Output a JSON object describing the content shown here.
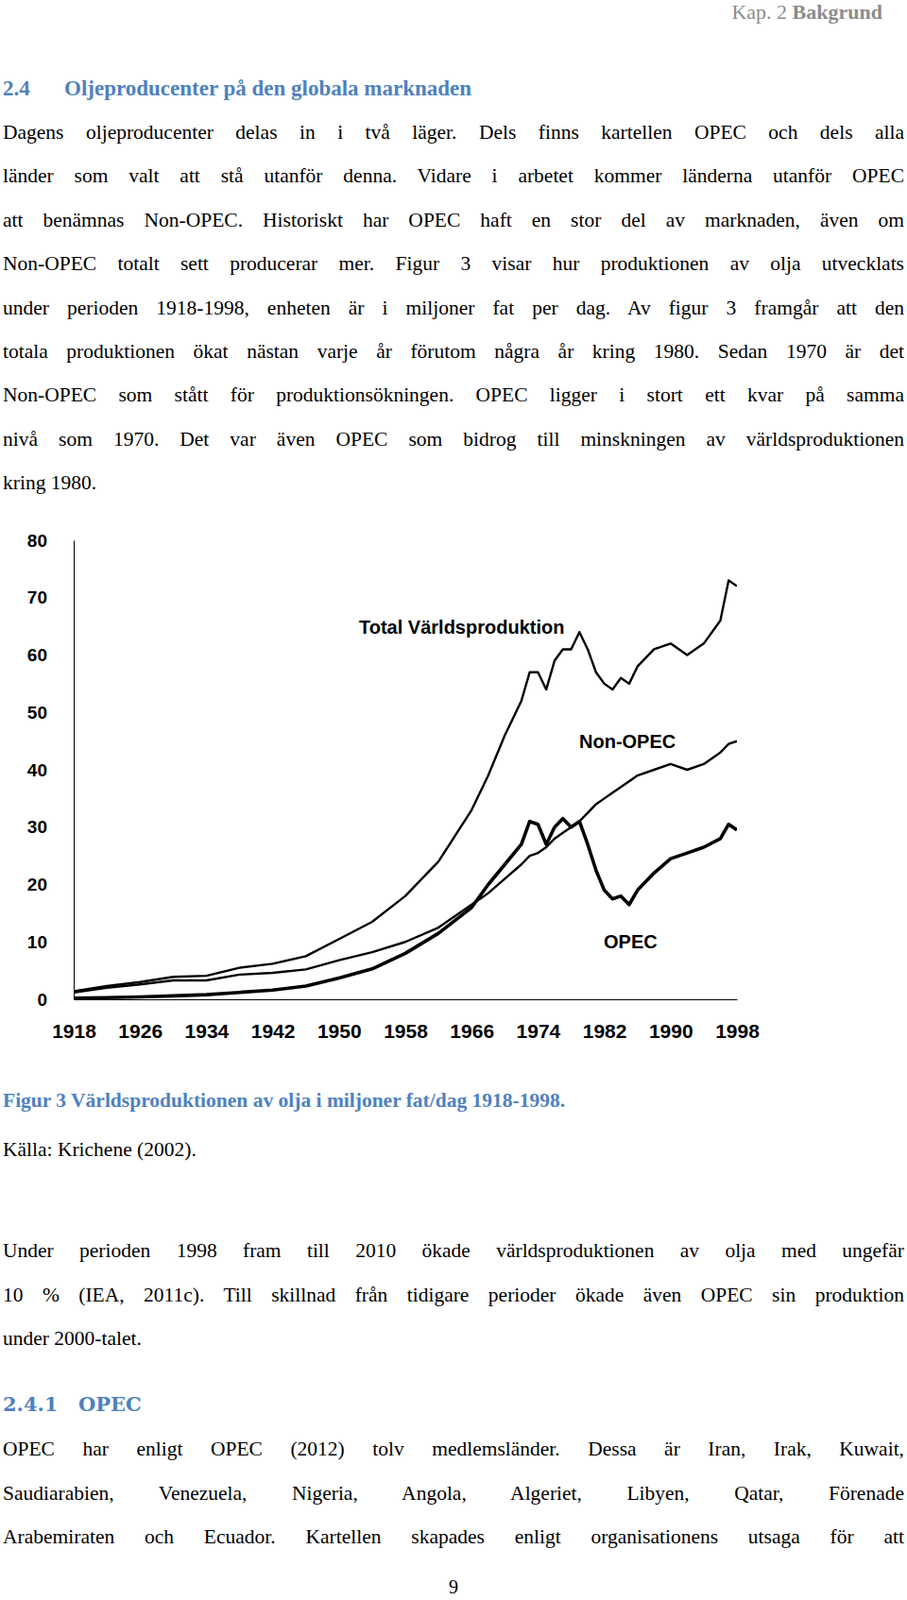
{
  "header": {
    "chapter": "Kap. 2",
    "title": "Bakgrund"
  },
  "section": {
    "number": "2.4",
    "title": "Oljeproducenter på den globala marknaden",
    "paragraph": [
      "Dagens oljeproducenter delas in i två läger. Dels finns kartellen OPEC och dels alla",
      "länder som valt att stå utanför denna. Vidare i arbetet kommer länderna utanför OPEC",
      "att benämnas Non-OPEC. Historiskt har OPEC haft en stor del av marknaden, även om",
      "Non-OPEC totalt sett producerar mer. Figur 3 visar hur produktionen av olja utvecklats",
      "under perioden 1918-1998, enheten är i miljoner fat per dag. Av figur 3 framgår att den",
      "totala produktionen ökat nästan varje år förutom några år kring 1980. Sedan 1970 är det",
      "Non-OPEC som stått för produktionsökningen. OPEC ligger i stort ett kvar på samma",
      "nivå som 1970. Det var även OPEC som bidrog till minskningen av världsproduktionen",
      "kring 1980."
    ]
  },
  "chart_data": {
    "type": "line",
    "x": [
      1918,
      1922,
      1926,
      1930,
      1934,
      1938,
      1942,
      1946,
      1950,
      1954,
      1958,
      1962,
      1966,
      1968,
      1970,
      1972,
      1973,
      1974,
      1975,
      1976,
      1977,
      1978,
      1979,
      1980,
      1981,
      1982,
      1983,
      1984,
      1985,
      1986,
      1988,
      1990,
      1992,
      1994,
      1996,
      1997,
      1998
    ],
    "xlim": [
      1918,
      1998
    ],
    "xticks": [
      1918,
      1926,
      1934,
      1942,
      1950,
      1958,
      1966,
      1974,
      1982,
      1990,
      1998
    ],
    "ylim": [
      0,
      80
    ],
    "yticks": [
      0,
      10,
      20,
      30,
      40,
      50,
      60,
      70,
      80
    ],
    "series": [
      {
        "name": "Total Världsproduktion",
        "color": "#000000",
        "values": [
          1.4,
          2.3,
          3.0,
          3.9,
          4.1,
          5.5,
          6.2,
          7.5,
          10.5,
          13.5,
          18,
          24,
          33,
          39,
          46,
          52,
          57,
          57,
          54,
          59,
          61,
          61,
          64,
          61,
          57,
          55,
          54,
          56,
          55,
          58,
          61,
          62,
          60,
          62,
          66,
          73,
          72
        ]
      },
      {
        "name": "Non-OPEC",
        "color": "#000000",
        "values": [
          1.2,
          2.0,
          2.6,
          3.3,
          3.3,
          4.3,
          4.6,
          5.2,
          6.8,
          8.2,
          10,
          12.5,
          16.5,
          18.5,
          21,
          23.5,
          25,
          25.5,
          26.5,
          28,
          29,
          30,
          31,
          32.5,
          34,
          35,
          36,
          37,
          38,
          39,
          40,
          41,
          40,
          41,
          43,
          44.5,
          45
        ]
      },
      {
        "name": "OPEC",
        "color": "#000000",
        "values": [
          0.2,
          0.3,
          0.4,
          0.6,
          0.8,
          1.2,
          1.6,
          2.3,
          3.7,
          5.3,
          8,
          11.5,
          16,
          20,
          23.5,
          27,
          31,
          30.5,
          27,
          30,
          31.5,
          30,
          31,
          27,
          22.5,
          19,
          17.5,
          18,
          16.5,
          19,
          22,
          24.5,
          25.5,
          26.5,
          28,
          30.5,
          29.5
        ]
      }
    ]
  },
  "figure": {
    "caption": "Figur 3 Världsproduktionen av olja i miljoner fat/dag 1918-1998.",
    "source": "Källa: Krichene (2002)."
  },
  "text_after_figure": [
    "Under perioden 1998 fram till 2010 ökade världsproduktionen av olja med ungefär",
    "10 % (IEA, 2011c). Till skillnad från tidigare perioder ökade även OPEC sin produktion",
    "under 2000-talet."
  ],
  "subsection": {
    "number": "2.4.1",
    "title": "OPEC",
    "paragraph": [
      "OPEC har enligt OPEC (2012) tolv medlemsländer. Dessa är Iran, Irak, Kuwait,",
      "Saudiarabien, Venezuela, Nigeria, Angola, Algeriet, Libyen, Qatar, Förenade",
      "Arabemiraten och Ecuador. Kartellen skapades enligt organisationens utsaga för att"
    ]
  },
  "page_number": 9
}
